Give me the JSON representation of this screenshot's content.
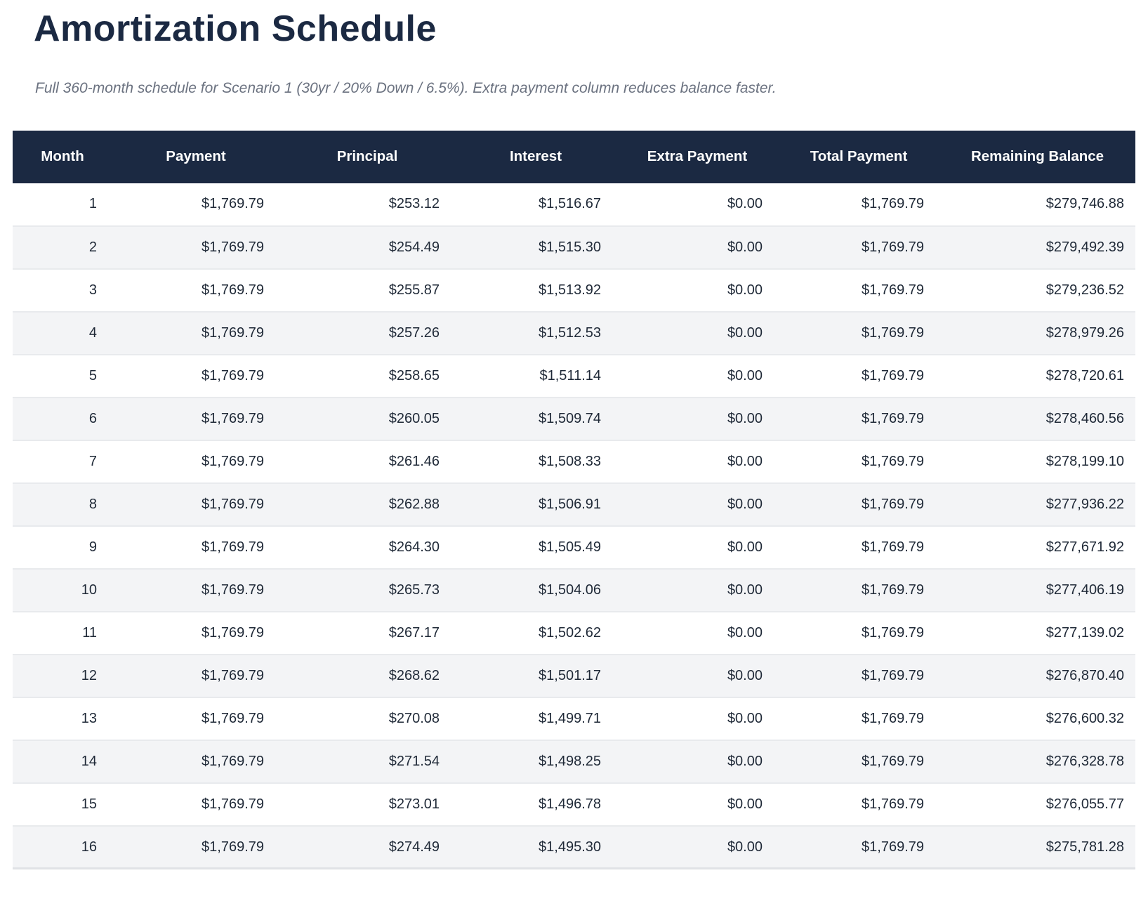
{
  "page": {
    "title": "Amortization Schedule",
    "subtitle": "Full 360-month schedule for Scenario 1 (30yr / 20% Down / 6.5%). Extra payment column reduces balance faster."
  },
  "colors": {
    "header_bg": "#1b2942",
    "title_text": "#1b2942",
    "row_alt_bg": "#f3f4f6",
    "row_border": "#e8eaed",
    "cell_text": "#1f2937",
    "subtitle_text": "#6b7280",
    "header_text": "#ffffff"
  },
  "table": {
    "columns": [
      "Month",
      "Payment",
      "Principal",
      "Interest",
      "Extra Payment",
      "Total Payment",
      "Remaining Balance"
    ],
    "column_keys": [
      "month",
      "payment",
      "principal",
      "interest",
      "extra-payment",
      "total-payment",
      "remaining-balance"
    ],
    "rows": [
      [
        "1",
        "$1,769.79",
        "$253.12",
        "$1,516.67",
        "$0.00",
        "$1,769.79",
        "$279,746.88"
      ],
      [
        "2",
        "$1,769.79",
        "$254.49",
        "$1,515.30",
        "$0.00",
        "$1,769.79",
        "$279,492.39"
      ],
      [
        "3",
        "$1,769.79",
        "$255.87",
        "$1,513.92",
        "$0.00",
        "$1,769.79",
        "$279,236.52"
      ],
      [
        "4",
        "$1,769.79",
        "$257.26",
        "$1,512.53",
        "$0.00",
        "$1,769.79",
        "$278,979.26"
      ],
      [
        "5",
        "$1,769.79",
        "$258.65",
        "$1,511.14",
        "$0.00",
        "$1,769.79",
        "$278,720.61"
      ],
      [
        "6",
        "$1,769.79",
        "$260.05",
        "$1,509.74",
        "$0.00",
        "$1,769.79",
        "$278,460.56"
      ],
      [
        "7",
        "$1,769.79",
        "$261.46",
        "$1,508.33",
        "$0.00",
        "$1,769.79",
        "$278,199.10"
      ],
      [
        "8",
        "$1,769.79",
        "$262.88",
        "$1,506.91",
        "$0.00",
        "$1,769.79",
        "$277,936.22"
      ],
      [
        "9",
        "$1,769.79",
        "$264.30",
        "$1,505.49",
        "$0.00",
        "$1,769.79",
        "$277,671.92"
      ],
      [
        "10",
        "$1,769.79",
        "$265.73",
        "$1,504.06",
        "$0.00",
        "$1,769.79",
        "$277,406.19"
      ],
      [
        "11",
        "$1,769.79",
        "$267.17",
        "$1,502.62",
        "$0.00",
        "$1,769.79",
        "$277,139.02"
      ],
      [
        "12",
        "$1,769.79",
        "$268.62",
        "$1,501.17",
        "$0.00",
        "$1,769.79",
        "$276,870.40"
      ],
      [
        "13",
        "$1,769.79",
        "$270.08",
        "$1,499.71",
        "$0.00",
        "$1,769.79",
        "$276,600.32"
      ],
      [
        "14",
        "$1,769.79",
        "$271.54",
        "$1,498.25",
        "$0.00",
        "$1,769.79",
        "$276,328.78"
      ],
      [
        "15",
        "$1,769.79",
        "$273.01",
        "$1,496.78",
        "$0.00",
        "$1,769.79",
        "$276,055.77"
      ],
      [
        "16",
        "$1,769.79",
        "$274.49",
        "$1,495.30",
        "$0.00",
        "$1,769.79",
        "$275,781.28"
      ]
    ]
  }
}
